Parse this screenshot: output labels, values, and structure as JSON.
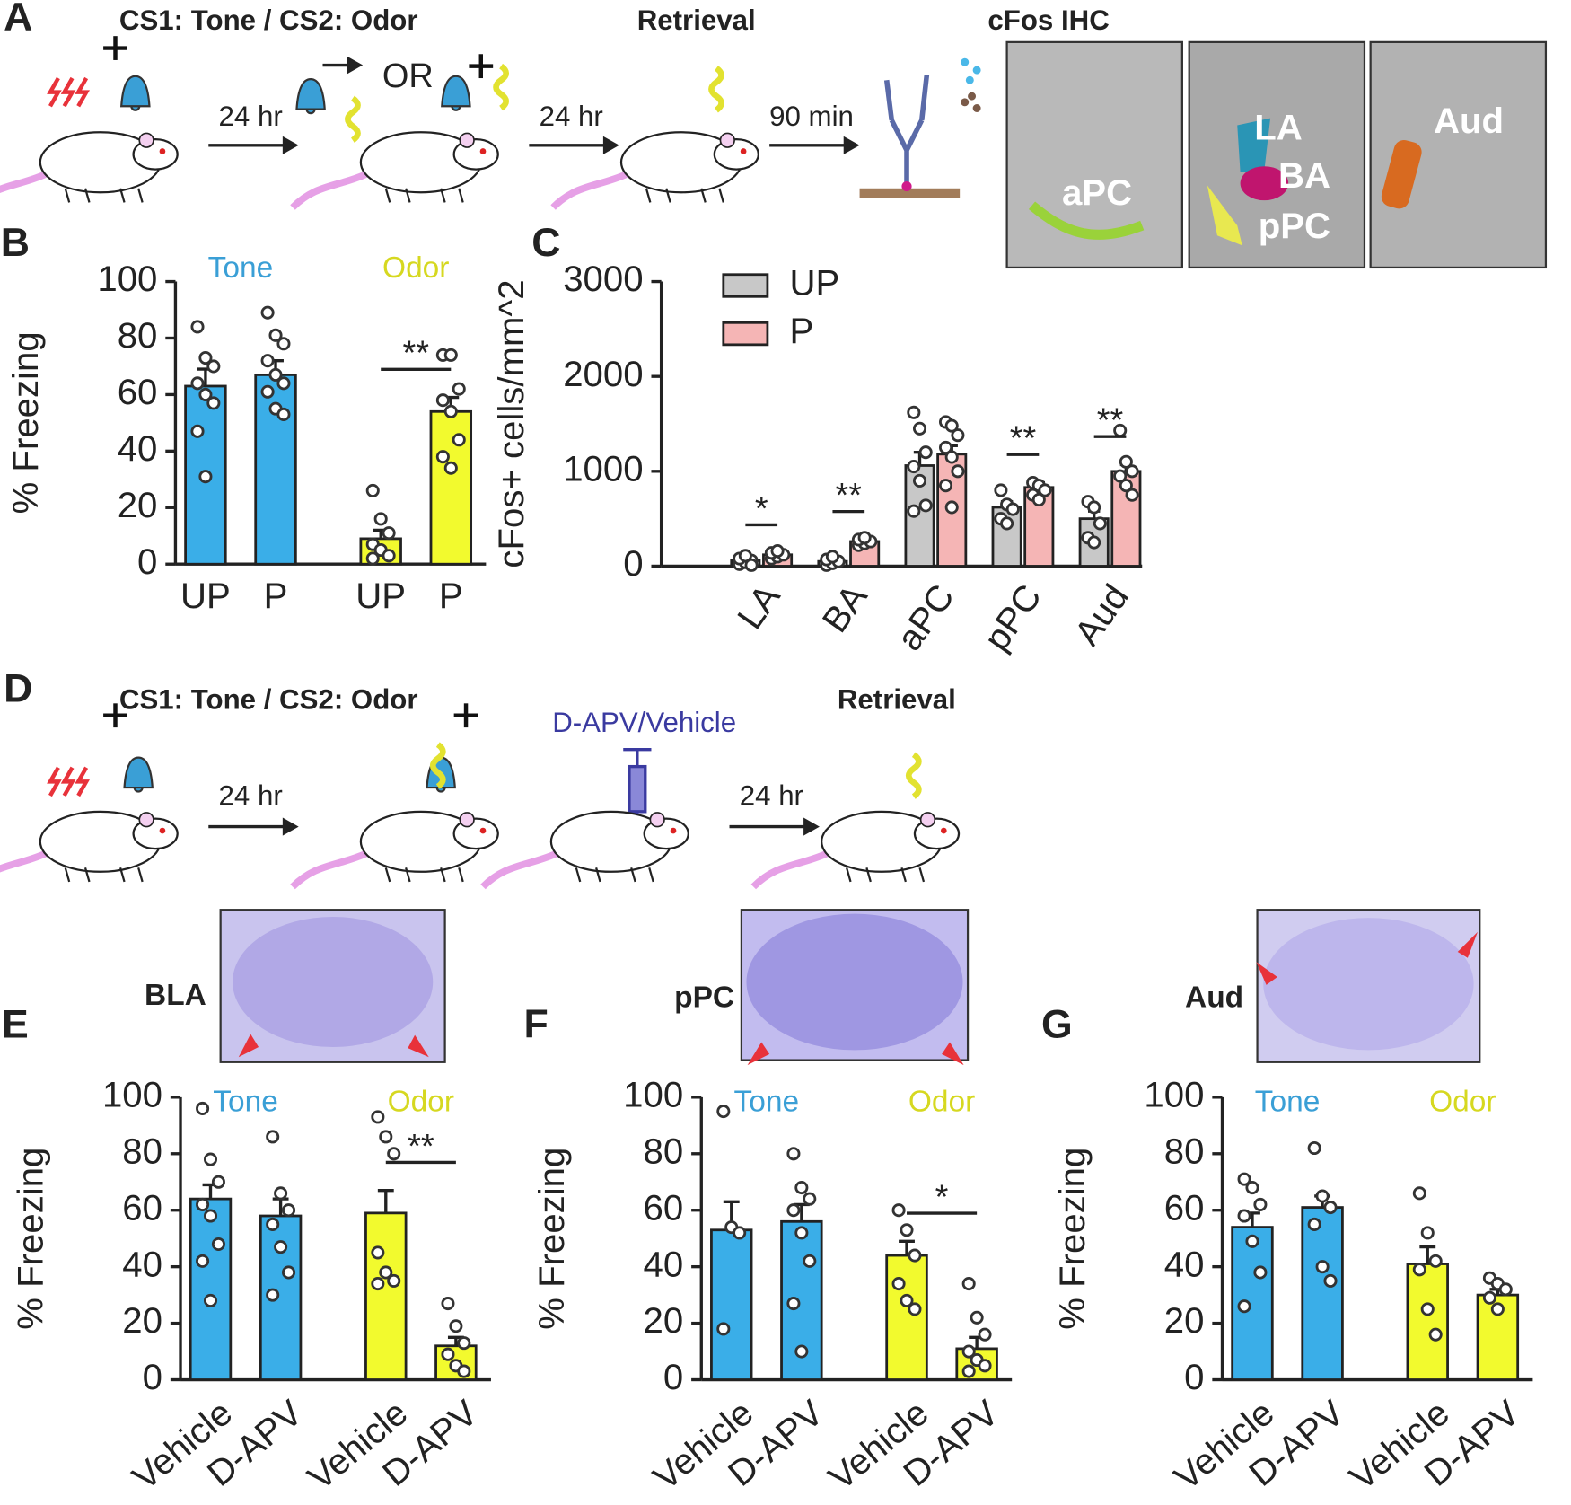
{
  "panel_labels": [
    "A",
    "B",
    "C",
    "D",
    "E",
    "F",
    "G"
  ],
  "schematic_a": {
    "title_cs": "CS1: Tone / CS2: Odor",
    "title_retrieval": "Retrieval",
    "title_ihc": "cFos IHC",
    "step1": "24 hr",
    "or": "OR",
    "step2": "24 hr",
    "step3": "90 min",
    "image_labels": [
      "aPC",
      "LA",
      "BA",
      "pPC",
      "Aud"
    ]
  },
  "schematic_d": {
    "title_cs": "CS1: Tone / CS2: Odor",
    "drug": "D-APV/Vehicle",
    "title_retrieval": "Retrieval",
    "step1": "24 hr",
    "step2": "24 hr",
    "histology_labels": [
      "BLA",
      "pPC",
      "Aud"
    ]
  },
  "chart_data": [
    {
      "type": "bar",
      "ylabel": "% Freezing",
      "categories": [
        "UP",
        "P",
        "UP",
        "P"
      ],
      "groups": [
        {
          "label": "Tone",
          "color": "#3a9fd6"
        },
        {
          "label": "Odor",
          "color": "#d6d820"
        }
      ],
      "colors": [
        "#3aaee8",
        "#3aaee8",
        "#f2fa2e",
        "#f2fa2e"
      ],
      "values": [
        63,
        67,
        9,
        54
      ],
      "errors": [
        6,
        5,
        3,
        5
      ],
      "points": [
        [
          84,
          73,
          70,
          64,
          60,
          57,
          47,
          31
        ],
        [
          89,
          81,
          78,
          72,
          67,
          64,
          61,
          55,
          53
        ],
        [
          26,
          16,
          11,
          7,
          5,
          3,
          2
        ],
        [
          74,
          74,
          62,
          58,
          54,
          44,
          38,
          34
        ]
      ],
      "significance": [
        null,
        "**"
      ],
      "ylim": [
        0,
        100
      ],
      "yticks": [
        0,
        20,
        40,
        60,
        80,
        100
      ]
    },
    {
      "type": "grouped_bar",
      "ylabel": "cFos+ cells/mm^2",
      "categories": [
        "LA",
        "BA",
        "aPC",
        "pPC",
        "Aud"
      ],
      "legend": "upper left",
      "series": [
        {
          "name": "UP",
          "color": "#c8c8c8",
          "values": [
            60,
            50,
            1060,
            620,
            500
          ],
          "errors": [
            30,
            20,
            140,
            60,
            80
          ],
          "points": [
            [
              20,
              40,
              60,
              80,
              110,
              10
            ],
            [
              10,
              30,
              50,
              70,
              100
            ],
            [
              1620,
              1450,
              1200,
              1050,
              900,
              640,
              580
            ],
            [
              800,
              650,
              600,
              500,
              450
            ],
            [
              680,
              620,
              450,
              300,
              250
            ]
          ]
        },
        {
          "name": "P",
          "color": "#f5b5b5",
          "values": [
            120,
            260,
            1180,
            830,
            1000
          ],
          "errors": [
            20,
            20,
            90,
            50,
            70
          ],
          "points": [
            [
              80,
              100,
              120,
              140,
              160
            ],
            [
              220,
              240,
              260,
              280,
              300
            ],
            [
              1520,
              1480,
              1380,
              1250,
              1150,
              1000,
              850,
              620
            ],
            [
              880,
              850,
              800,
              750,
              700
            ],
            [
              1430,
              1100,
              1000,
              950,
              850,
              750
            ]
          ]
        }
      ],
      "significance": [
        "*",
        "**",
        null,
        "**",
        "**"
      ],
      "ylim": [
        0,
        3000
      ],
      "yticks": [
        0,
        1000,
        2000,
        3000
      ]
    },
    {
      "type": "bar",
      "ylabel": "% Freezing",
      "categories": [
        "Vehicle",
        "D-APV",
        "Vehicle",
        "D-APV"
      ],
      "groups": [
        {
          "label": "Tone",
          "color": "#3a9fd6"
        },
        {
          "label": "Odor",
          "color": "#d6d820"
        }
      ],
      "colors": [
        "#3aaee8",
        "#3aaee8",
        "#f2fa2e",
        "#f2fa2e"
      ],
      "values": [
        64,
        58,
        59,
        12
      ],
      "errors": [
        5,
        6,
        8,
        3
      ],
      "points": [
        [
          96,
          78,
          70,
          62,
          58,
          48,
          42,
          28
        ],
        [
          86,
          66,
          60,
          55,
          47,
          38,
          30
        ],
        [
          93,
          86,
          80,
          45,
          38,
          35,
          34
        ],
        [
          27,
          19,
          13,
          9,
          5,
          3
        ]
      ],
      "significance": [
        null,
        "**"
      ],
      "ylim": [
        0,
        100
      ],
      "yticks": [
        0,
        20,
        40,
        60,
        80,
        100
      ]
    },
    {
      "type": "bar",
      "ylabel": "% Freezing",
      "categories": [
        "Vehicle",
        "D-APV",
        "Vehicle",
        "D-APV"
      ],
      "groups": [
        {
          "label": "Tone",
          "color": "#3a9fd6"
        },
        {
          "label": "Odor",
          "color": "#d6d820"
        }
      ],
      "colors": [
        "#3aaee8",
        "#3aaee8",
        "#f2fa2e",
        "#f2fa2e"
      ],
      "values": [
        53,
        56,
        44,
        11
      ],
      "errors": [
        10,
        6,
        5,
        4
      ],
      "points": [
        [
          95,
          54,
          52,
          18
        ],
        [
          80,
          68,
          64,
          60,
          52,
          42,
          27,
          10
        ],
        [
          60,
          53,
          44,
          34,
          28,
          25
        ],
        [
          34,
          22,
          16,
          10,
          7,
          5,
          3
        ]
      ],
      "significance": [
        null,
        "*"
      ],
      "ylim": [
        0,
        100
      ],
      "yticks": [
        0,
        20,
        40,
        60,
        80,
        100
      ]
    },
    {
      "type": "bar",
      "ylabel": "% Freezing",
      "categories": [
        "Vehicle",
        "D-APV",
        "Vehicle",
        "D-APV"
      ],
      "groups": [
        {
          "label": "Tone",
          "color": "#3a9fd6"
        },
        {
          "label": "Odor",
          "color": "#d6d820"
        }
      ],
      "colors": [
        "#3aaee8",
        "#3aaee8",
        "#f2fa2e",
        "#f2fa2e"
      ],
      "values": [
        54,
        61,
        41,
        30
      ],
      "errors": [
        5,
        4,
        6,
        2
      ],
      "points": [
        [
          71,
          68,
          62,
          58,
          49,
          38,
          26
        ],
        [
          82,
          65,
          61,
          55,
          40,
          35
        ],
        [
          66,
          52,
          42,
          39,
          25,
          16
        ],
        [
          36,
          34,
          32,
          29,
          25
        ]
      ],
      "significance": [
        null,
        null
      ],
      "ylim": [
        0,
        100
      ],
      "yticks": [
        0,
        20,
        40,
        60,
        80,
        100
      ]
    }
  ]
}
